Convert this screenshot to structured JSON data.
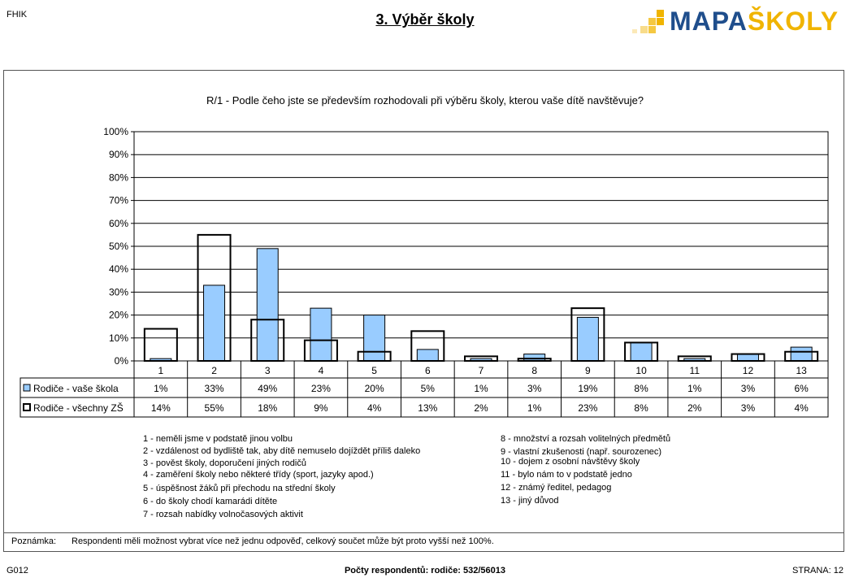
{
  "header": {
    "left": "FHIK",
    "title": "3. Výběr školy"
  },
  "logo": {
    "text_a": "MAPA",
    "text_b": "ŠKOLY",
    "color_a": "#1f4e8c",
    "color_b": "#f0b400"
  },
  "chart_title": "R/1 - Podle čeho jste se především rozhodovali při výběru školy, kterou vaše dítě navštěvuje?",
  "chart_data": {
    "type": "bar",
    "categories": [
      "1",
      "2",
      "3",
      "4",
      "5",
      "6",
      "7",
      "8",
      "9",
      "10",
      "11",
      "12",
      "13"
    ],
    "series": [
      {
        "name": "Rodiče - vaše škola",
        "values": [
          1,
          33,
          49,
          23,
          20,
          5,
          1,
          3,
          19,
          8,
          1,
          3,
          6
        ],
        "labels": [
          "1%",
          "33%",
          "49%",
          "23%",
          "20%",
          "5%",
          "1%",
          "3%",
          "19%",
          "8%",
          "1%",
          "3%",
          "6%"
        ],
        "color": "#99ccff"
      },
      {
        "name": "Rodiče - všechny ZŠ",
        "values": [
          14,
          55,
          18,
          9,
          4,
          13,
          2,
          1,
          23,
          8,
          2,
          3,
          4
        ],
        "labels": [
          "14%",
          "55%",
          "18%",
          "9%",
          "4%",
          "13%",
          "2%",
          "1%",
          "23%",
          "8%",
          "2%",
          "3%",
          "4%"
        ],
        "color": "#ffffff"
      }
    ],
    "yticks": [
      "0%",
      "10%",
      "20%",
      "30%",
      "40%",
      "50%",
      "60%",
      "70%",
      "80%",
      "90%",
      "100%"
    ],
    "ylim": [
      0,
      100
    ],
    "grid": true
  },
  "legend_items": [
    "1   -   neměli jsme v podstatě jinou volbu",
    "2   -   vzdálenost od bydliště tak, aby dítě nemuselo dojíždět příliš daleko",
    "3   -   pověst školy, doporučení jiných rodičů",
    "4   -   zaměření školy nebo některé třídy (sport, jazyky apod.)",
    "5   -   úspěšnost žáků při přechodu na střední školy",
    "6   -   do školy chodí kamarádi dítěte",
    "7   -   rozsah nabídky volnočasových aktivit",
    "8   -   množství a rozsah volitelných předmětů",
    "9   -   vlastní zkušenosti (např. sourozenec)",
    "10   -   dojem z osobní návštěvy školy",
    "11   -   bylo nám to v podstatě jedno",
    "12   -   známý ředitel, pedagog",
    "13   -   jiný důvod"
  ],
  "note": {
    "label": "Poznámka:",
    "text": "Respondenti měli možnost vybrat více než jednu odpověď, celkový součet může být proto vyšší než 100%."
  },
  "footer": {
    "left": "G012",
    "middle": "Počty respondentů:    rodiče: 532/56013",
    "right": "STRANA: 12"
  }
}
